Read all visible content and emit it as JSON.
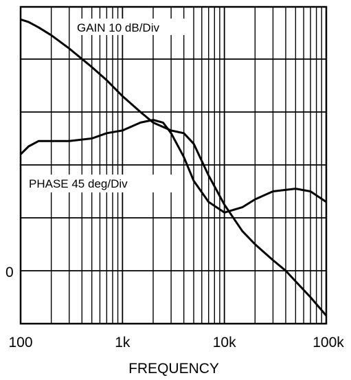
{
  "chart_data": {
    "type": "line",
    "xscale": "log",
    "xlim": [
      100,
      100000
    ],
    "xlabel": "FREQUENCY",
    "x_ticks": [
      {
        "value": 100,
        "label": "100"
      },
      {
        "value": 1000,
        "label": "1k"
      },
      {
        "value": 10000,
        "label": "10k"
      },
      {
        "value": 100000,
        "label": "100k"
      }
    ],
    "y_zero_label": "0",
    "grid": true,
    "annotations": [
      {
        "text": "GAIN 10 dB/Div",
        "series": "gain"
      },
      {
        "text": "PHASE 45 deg/Div",
        "series": "phase"
      }
    ],
    "series": [
      {
        "id": "gain",
        "x": [
          100,
          120,
          150,
          200,
          300,
          500,
          700,
          1000,
          1500,
          2000,
          3000,
          4000,
          5000,
          7000,
          10000,
          15000,
          20000,
          30000,
          40000,
          50000,
          70000,
          100000
        ],
        "y": [
          47.5,
          47.0,
          46.0,
          44.5,
          42.0,
          38.5,
          36.0,
          33.0,
          30.0,
          28.0,
          26.5,
          26.0,
          24.0,
          18.0,
          12.5,
          7.5,
          5.0,
          2.0,
          0.0,
          -2.0,
          -5.0,
          -8.5
        ]
      },
      {
        "id": "phase",
        "x": [
          100,
          120,
          150,
          200,
          300,
          500,
          700,
          1000,
          1500,
          2000,
          2500,
          3000,
          4000,
          5000,
          7000,
          10000,
          15000,
          20000,
          30000,
          50000,
          70000,
          100000
        ],
        "y": [
          22.0,
          23.5,
          24.5,
          24.5,
          24.5,
          25.0,
          26.0,
          26.5,
          28.0,
          28.5,
          28.0,
          26.0,
          21.5,
          17.0,
          13.0,
          11.0,
          12.0,
          13.5,
          15.0,
          15.5,
          15.0,
          13.0
        ]
      }
    ]
  }
}
